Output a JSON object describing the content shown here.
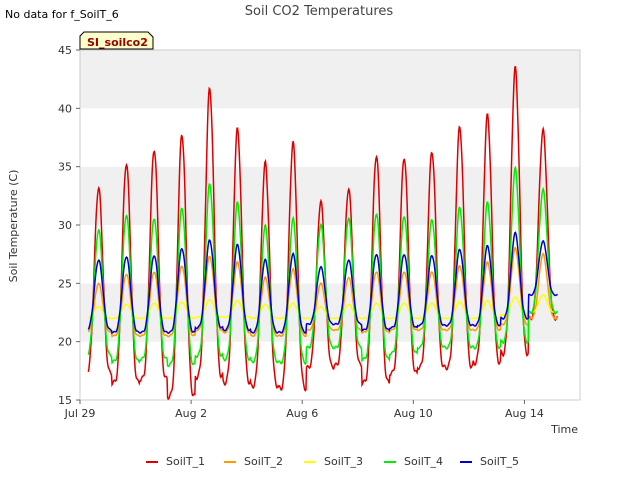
{
  "nodata_note": "No data for f_SoilT_6",
  "site_tag": "SI_soilco2",
  "chart_data": {
    "type": "line",
    "title": "Soil CO2 Temperatures",
    "xlabel": "Time",
    "ylabel": "Soil Temperature (C)",
    "xlim": [
      0,
      18
    ],
    "ylim": [
      15,
      45
    ],
    "x_ticks": [
      {
        "label": "Jul 29",
        "day": 0
      },
      {
        "label": "Aug 2",
        "day": 4
      },
      {
        "label": "Aug 6",
        "day": 8
      },
      {
        "label": "Aug 10",
        "day": 12
      },
      {
        "label": "Aug 14",
        "day": 16
      }
    ],
    "y_ticks": [
      15,
      20,
      25,
      30,
      35,
      40,
      45
    ],
    "series": [
      {
        "name": "SoilT_1",
        "color": "#dd0000",
        "day_start": 0.3,
        "day_end": 17.2,
        "daily_peaks": [
          33.2,
          35.3,
          36.5,
          37.8,
          41.7,
          38.2,
          35.3,
          37.0,
          32.0,
          33.1,
          36.0,
          35.8,
          36.3,
          38.4,
          39.4,
          43.4,
          38.1
        ],
        "daily_mins": [
          17.3,
          16.5,
          16.8,
          15.3,
          17.0,
          16.5,
          16.2,
          16.0,
          17.8,
          18.0,
          16.5,
          17.3,
          17.8,
          17.8,
          18.2,
          19.0,
          22.0
        ]
      },
      {
        "name": "SoilT_2",
        "color": "#ff9900",
        "day_start": 0.3,
        "day_end": 17.2,
        "daily_peaks": [
          25.0,
          25.8,
          26.0,
          26.5,
          27.3,
          26.8,
          25.5,
          26.2,
          25.0,
          25.5,
          26.0,
          26.0,
          26.0,
          26.5,
          26.8,
          28.0,
          27.5
        ],
        "daily_mins": [
          20.8,
          20.5,
          20.5,
          20.5,
          21.0,
          20.8,
          20.5,
          20.5,
          21.0,
          21.0,
          20.8,
          21.0,
          21.0,
          21.0,
          21.0,
          21.5,
          22.0
        ]
      },
      {
        "name": "SoilT_3",
        "color": "#ffff00",
        "day_start": 0.3,
        "day_end": 17.2,
        "daily_peaks": [
          23.0,
          23.2,
          23.3,
          23.4,
          23.6,
          23.5,
          23.2,
          23.3,
          23.0,
          23.2,
          23.3,
          23.3,
          23.3,
          23.4,
          23.5,
          23.8,
          24.0
        ],
        "daily_mins": [
          22.0,
          22.0,
          22.0,
          22.0,
          22.1,
          22.1,
          22.0,
          22.0,
          22.0,
          22.0,
          22.0,
          22.0,
          22.0,
          22.0,
          22.0,
          22.3,
          22.5
        ]
      },
      {
        "name": "SoilT_4",
        "color": "#00ee00",
        "day_start": 0.3,
        "day_end": 17.2,
        "daily_peaks": [
          29.6,
          30.9,
          30.6,
          31.5,
          33.5,
          31.9,
          29.9,
          30.5,
          30.0,
          30.6,
          31.0,
          30.8,
          30.5,
          31.5,
          31.9,
          34.8,
          33.0
        ],
        "daily_mins": [
          18.8,
          18.3,
          18.5,
          18.0,
          18.8,
          18.5,
          18.3,
          18.2,
          19.5,
          19.5,
          18.5,
          19.0,
          19.5,
          19.5,
          19.5,
          20.0,
          22.5
        ]
      },
      {
        "name": "SoilT_5",
        "color": "#0000cc",
        "day_start": 0.3,
        "day_end": 17.2,
        "daily_peaks": [
          27.0,
          27.3,
          27.4,
          28.0,
          28.7,
          28.3,
          27.0,
          27.5,
          26.4,
          27.0,
          27.5,
          27.5,
          27.4,
          27.9,
          28.2,
          29.3,
          28.6
        ],
        "daily_mins": [
          21.0,
          20.8,
          20.8,
          20.8,
          21.2,
          21.0,
          20.8,
          20.8,
          21.5,
          21.5,
          21.0,
          21.2,
          21.4,
          21.4,
          21.4,
          22.0,
          24.0
        ]
      }
    ],
    "legend_position": "bottom-center",
    "grid": "alternating horizontal bands"
  }
}
